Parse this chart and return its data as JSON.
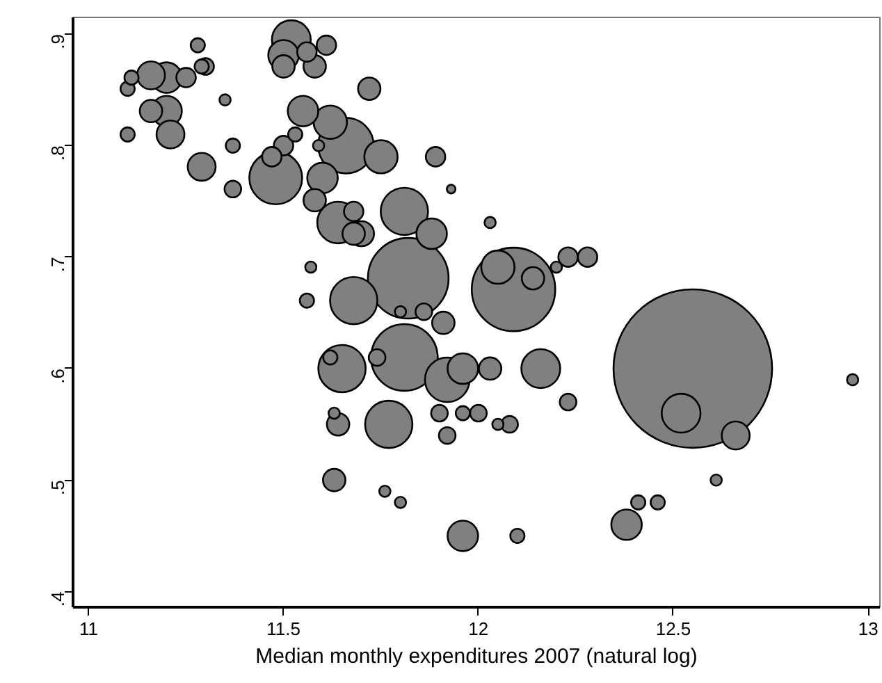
{
  "chart_data": {
    "type": "bubble",
    "xlabel": "Median monthly expenditures 2007 (natural log)",
    "xlim": [
      10.96,
      13.03
    ],
    "ylim": [
      0.386,
      0.915
    ],
    "xticks": [
      11,
      11.5,
      12,
      12.5,
      13
    ],
    "yticks": [
      {
        "value": 0.4,
        "label": ".4"
      },
      {
        "value": 0.5,
        "label": ".5"
      },
      {
        "value": 0.6,
        "label": ".6"
      },
      {
        "value": 0.7,
        "label": ".7"
      },
      {
        "value": 0.8,
        "label": ".8"
      },
      {
        "value": 0.9,
        "label": ".9"
      }
    ],
    "grid": false,
    "series": [
      {
        "color": "#808080",
        "x": [
          11.1,
          11.11,
          11.16,
          11.2,
          11.25,
          11.28,
          11.29,
          11.3,
          11.2,
          11.16,
          11.21,
          11.1,
          11.35,
          11.37,
          11.29,
          11.37,
          11.52,
          11.5,
          11.5,
          11.56,
          11.58,
          11.61,
          11.72,
          11.55,
          11.62,
          11.66,
          11.53,
          11.5,
          11.47,
          11.59,
          11.48,
          11.6,
          11.75,
          11.89,
          11.58,
          11.64,
          11.68,
          11.68,
          11.7,
          11.81,
          11.88,
          11.93,
          12.03,
          11.82,
          12.09,
          12.05,
          12.14,
          12.2,
          12.23,
          12.28,
          11.57,
          11.68,
          11.56,
          11.8,
          11.86,
          11.91,
          11.65,
          11.62,
          11.81,
          11.74,
          11.92,
          11.96,
          12.03,
          12.16,
          12.23,
          12.55,
          12.52,
          12.66,
          12.96,
          12.61,
          12.41,
          12.46,
          12.38,
          11.96,
          12.1,
          11.9,
          11.96,
          12.0,
          12.05,
          12.08,
          11.92,
          11.64,
          11.63,
          11.77,
          11.63,
          11.76,
          11.8
        ],
        "values": [
          0.851,
          0.861,
          0.863,
          0.861,
          0.861,
          0.89,
          0.871,
          0.871,
          0.831,
          0.831,
          0.81,
          0.81,
          0.841,
          0.8,
          0.781,
          0.761,
          0.895,
          0.881,
          0.871,
          0.884,
          0.871,
          0.89,
          0.851,
          0.831,
          0.821,
          0.8,
          0.81,
          0.8,
          0.79,
          0.8,
          0.771,
          0.771,
          0.79,
          0.79,
          0.751,
          0.731,
          0.741,
          0.721,
          0.721,
          0.741,
          0.721,
          0.761,
          0.731,
          0.681,
          0.671,
          0.691,
          0.681,
          0.691,
          0.7,
          0.7,
          0.691,
          0.661,
          0.661,
          0.651,
          0.651,
          0.641,
          0.6,
          0.61,
          0.61,
          0.61,
          0.59,
          0.6,
          0.6,
          0.6,
          0.57,
          0.6,
          0.56,
          0.54,
          0.59,
          0.5,
          0.48,
          0.48,
          0.46,
          0.45,
          0.45,
          0.56,
          0.56,
          0.56,
          0.55,
          0.55,
          0.54,
          0.55,
          0.56,
          0.55,
          0.5,
          0.49,
          0.48
        ],
        "sizes": [
          0.008,
          0.008,
          0.031,
          0.037,
          0.015,
          0.008,
          0.008,
          0.011,
          0.037,
          0.02,
          0.031,
          0.008,
          0.005,
          0.008,
          0.031,
          0.011,
          0.06,
          0.037,
          0.02,
          0.015,
          0.02,
          0.015,
          0.02,
          0.037,
          0.044,
          0.123,
          0.008,
          0.015,
          0.015,
          0.005,
          0.111,
          0.037,
          0.044,
          0.015,
          0.02,
          0.069,
          0.015,
          0.02,
          0.025,
          0.089,
          0.037,
          0.003,
          0.005,
          0.259,
          0.277,
          0.044,
          0.02,
          0.005,
          0.015,
          0.015,
          0.005,
          0.089,
          0.008,
          0.005,
          0.011,
          0.02,
          0.089,
          0.008,
          0.177,
          0.011,
          0.079,
          0.037,
          0.02,
          0.06,
          0.011,
          1,
          0.06,
          0.031,
          0.005,
          0.005,
          0.008,
          0.008,
          0.037,
          0.037,
          0.008,
          0.011,
          0.008,
          0.011,
          0.005,
          0.011,
          0.011,
          0.02,
          0.005,
          0.089,
          0.02,
          0.005,
          0.005
        ]
      }
    ]
  }
}
